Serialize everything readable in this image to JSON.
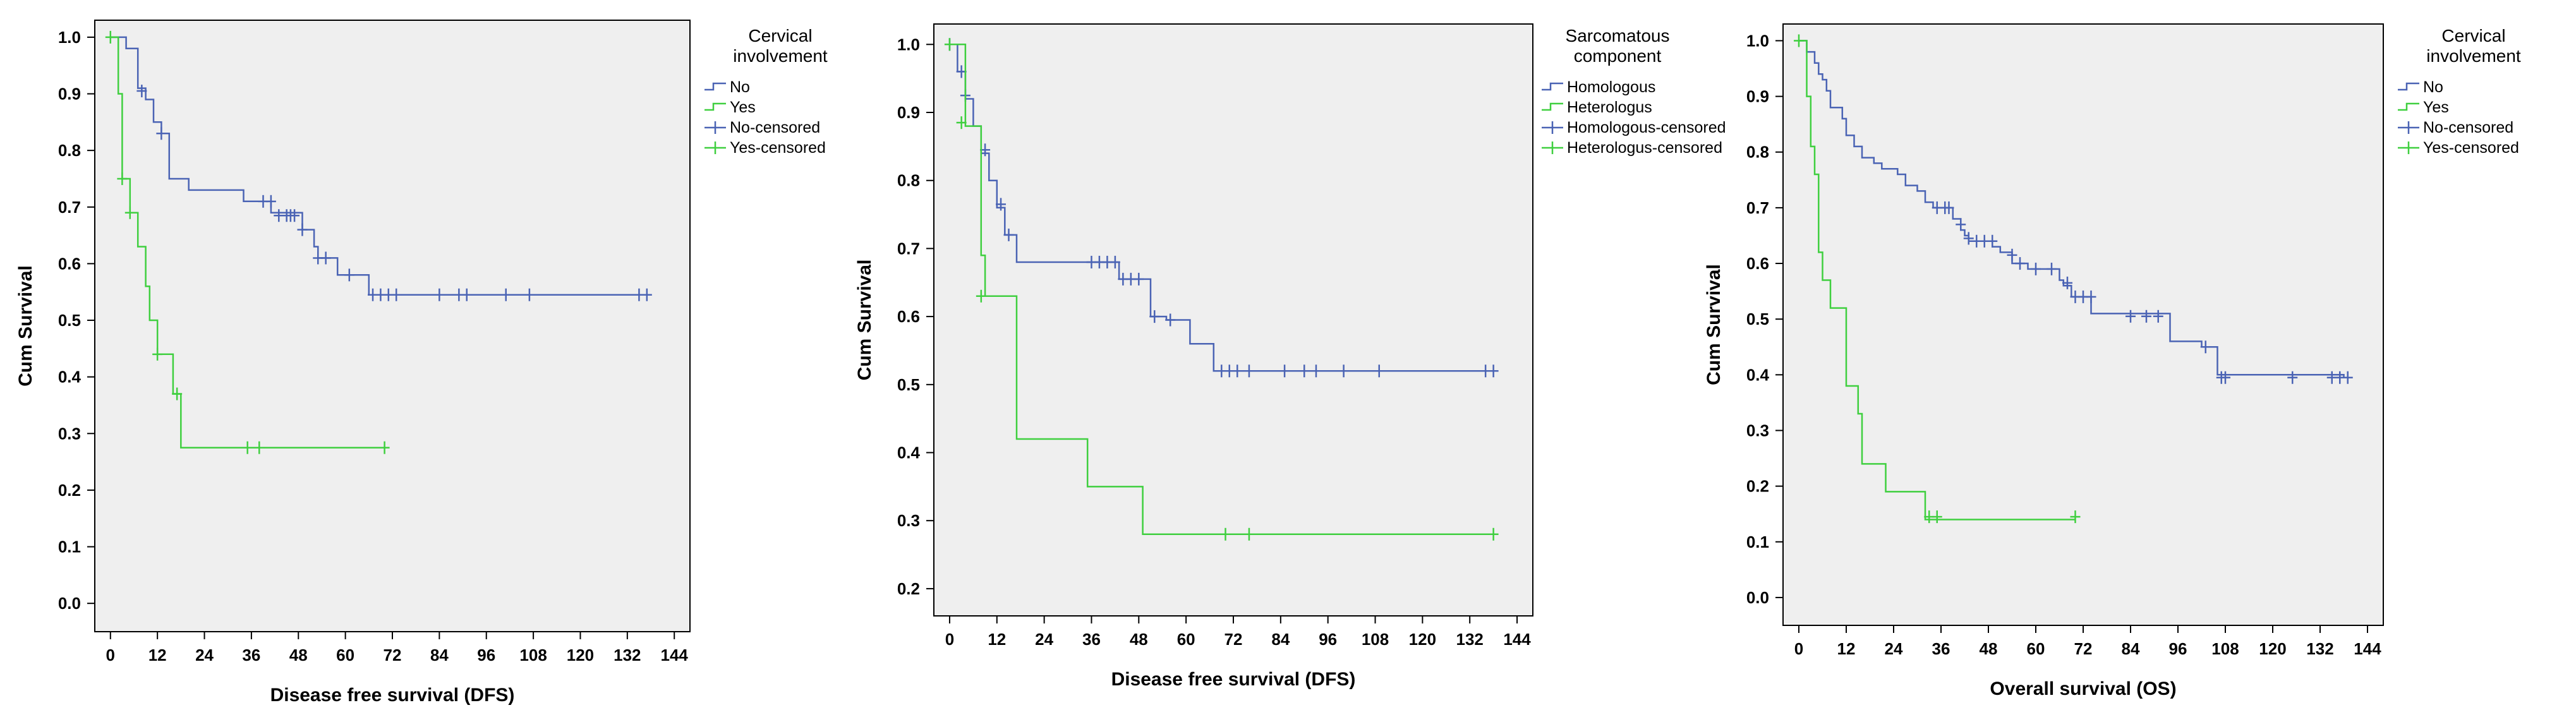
{
  "colors": {
    "blue": "#4a63b4",
    "green": "#3fcf3f",
    "plot_bg": "#efefef",
    "axis": "#000000"
  },
  "chart_data": [
    {
      "type": "line",
      "subtype": "kaplan-meier",
      "xlabel": "Disease free survival (DFS)",
      "ylabel": "Cum Survival",
      "xlim": [
        -4,
        148
      ],
      "ylim": [
        -0.05,
        1.03
      ],
      "x_ticks": [
        0,
        12,
        24,
        36,
        48,
        60,
        72,
        84,
        96,
        108,
        120,
        132,
        144
      ],
      "y_ticks": [
        0.0,
        0.1,
        0.2,
        0.3,
        0.4,
        0.5,
        0.6,
        0.7,
        0.8,
        0.9,
        1.0
      ],
      "legend": {
        "title_lines": [
          "Cervical",
          "involvement"
        ],
        "entries": [
          "No",
          "Yes",
          "No-censored",
          "Yes-censored"
        ]
      },
      "series": [
        {
          "name": "No",
          "color": "blue",
          "steps": [
            [
              0,
              1.0
            ],
            [
              4,
              0.98
            ],
            [
              7,
              0.91
            ],
            [
              9,
              0.89
            ],
            [
              11,
              0.85
            ],
            [
              13,
              0.83
            ],
            [
              15,
              0.75
            ],
            [
              20,
              0.73
            ],
            [
              34,
              0.71
            ],
            [
              41,
              0.69
            ],
            [
              49,
              0.66
            ],
            [
              52,
              0.63
            ],
            [
              53,
              0.61
            ],
            [
              58,
              0.58
            ],
            [
              64,
              0.58
            ],
            [
              66,
              0.545
            ],
            [
              137,
              0.545
            ]
          ],
          "censored": [
            [
              8,
              0.905
            ],
            [
              13,
              0.83
            ],
            [
              39,
              0.71
            ],
            [
              41,
              0.71
            ],
            [
              43,
              0.685
            ],
            [
              45,
              0.685
            ],
            [
              46,
              0.685
            ],
            [
              47,
              0.685
            ],
            [
              49,
              0.66
            ],
            [
              53,
              0.61
            ],
            [
              55,
              0.61
            ],
            [
              61,
              0.58
            ],
            [
              67,
              0.545
            ],
            [
              69,
              0.545
            ],
            [
              71,
              0.545
            ],
            [
              73,
              0.545
            ],
            [
              84,
              0.545
            ],
            [
              89,
              0.545
            ],
            [
              91,
              0.545
            ],
            [
              101,
              0.545
            ],
            [
              107,
              0.545
            ],
            [
              135,
              0.545
            ],
            [
              137,
              0.545
            ]
          ]
        },
        {
          "name": "Yes",
          "color": "green",
          "steps": [
            [
              0,
              1.0
            ],
            [
              2,
              0.9
            ],
            [
              3,
              0.75
            ],
            [
              5,
              0.69
            ],
            [
              7,
              0.63
            ],
            [
              9,
              0.56
            ],
            [
              10,
              0.5
            ],
            [
              12,
              0.44
            ],
            [
              16,
              0.37
            ],
            [
              18,
              0.275
            ],
            [
              70,
              0.275
            ]
          ],
          "censored": [
            [
              0,
              1.0
            ],
            [
              3,
              0.75
            ],
            [
              5,
              0.69
            ],
            [
              12,
              0.44
            ],
            [
              17,
              0.37
            ],
            [
              35,
              0.275
            ],
            [
              38,
              0.275
            ],
            [
              70,
              0.275
            ]
          ]
        }
      ]
    },
    {
      "type": "line",
      "subtype": "kaplan-meier",
      "xlabel": "Disease free survival (DFS)",
      "ylabel": "Cum Survival",
      "xlim": [
        -4,
        148
      ],
      "ylim": [
        0.16,
        1.03
      ],
      "x_ticks": [
        0,
        12,
        24,
        36,
        48,
        60,
        72,
        84,
        96,
        108,
        120,
        132,
        144
      ],
      "y_ticks": [
        0.2,
        0.3,
        0.4,
        0.5,
        0.6,
        0.7,
        0.8,
        0.9,
        1.0
      ],
      "legend": {
        "title_lines": [
          "Sarcomatous",
          "component"
        ],
        "entries": [
          "Homologous",
          "Heterologus",
          "Homologous-censored",
          "Heterologus-censored"
        ]
      },
      "series": [
        {
          "name": "Homologous",
          "color": "blue",
          "steps": [
            [
              0,
              1.0
            ],
            [
              2,
              0.96
            ],
            [
              4,
              0.92
            ],
            [
              6,
              0.88
            ],
            [
              8,
              0.84
            ],
            [
              10,
              0.8
            ],
            [
              12,
              0.76
            ],
            [
              14,
              0.72
            ],
            [
              17,
              0.68
            ],
            [
              43,
              0.655
            ],
            [
              51,
              0.6
            ],
            [
              55,
              0.595
            ],
            [
              61,
              0.56
            ],
            [
              67,
              0.52
            ],
            [
              138,
              0.52
            ]
          ],
          "censored": [
            [
              0,
              1.0
            ],
            [
              3,
              0.96
            ],
            [
              4,
              0.925
            ],
            [
              9,
              0.845
            ],
            [
              13,
              0.765
            ],
            [
              15,
              0.72
            ],
            [
              36,
              0.68
            ],
            [
              38,
              0.68
            ],
            [
              40,
              0.68
            ],
            [
              42,
              0.68
            ],
            [
              44,
              0.655
            ],
            [
              46,
              0.655
            ],
            [
              48,
              0.655
            ],
            [
              52,
              0.6
            ],
            [
              56,
              0.595
            ],
            [
              69,
              0.52
            ],
            [
              71,
              0.52
            ],
            [
              73,
              0.52
            ],
            [
              76,
              0.52
            ],
            [
              85,
              0.52
            ],
            [
              90,
              0.52
            ],
            [
              93,
              0.52
            ],
            [
              100,
              0.52
            ],
            [
              109,
              0.52
            ],
            [
              136,
              0.52
            ],
            [
              138,
              0.52
            ]
          ]
        },
        {
          "name": "Heterologus",
          "color": "green",
          "steps": [
            [
              0,
              1.0
            ],
            [
              4,
              0.88
            ],
            [
              8,
              0.69
            ],
            [
              9,
              0.63
            ],
            [
              17,
              0.42
            ],
            [
              35,
              0.35
            ],
            [
              49,
              0.28
            ],
            [
              138,
              0.28
            ]
          ],
          "censored": [
            [
              0,
              1.0
            ],
            [
              3,
              0.885
            ],
            [
              8,
              0.63
            ],
            [
              70,
              0.28
            ],
            [
              76,
              0.28
            ],
            [
              138,
              0.28
            ]
          ]
        }
      ]
    },
    {
      "type": "line",
      "subtype": "kaplan-meier",
      "xlabel": "Overall survival (OS)",
      "ylabel": "Cum Survival",
      "xlim": [
        -4,
        148
      ],
      "ylim": [
        -0.05,
        1.03
      ],
      "x_ticks": [
        0,
        12,
        24,
        36,
        48,
        60,
        72,
        84,
        96,
        108,
        120,
        132,
        144
      ],
      "y_ticks": [
        0.0,
        0.1,
        0.2,
        0.3,
        0.4,
        0.5,
        0.6,
        0.7,
        0.8,
        0.9,
        1.0
      ],
      "legend": {
        "title_lines": [
          "Cervical",
          "involvement"
        ],
        "entries": [
          "No",
          "Yes",
          "No-censored",
          "Yes-censored"
        ]
      },
      "series": [
        {
          "name": "No",
          "color": "blue",
          "steps": [
            [
              0,
              1.0
            ],
            [
              2,
              0.98
            ],
            [
              4,
              0.96
            ],
            [
              5,
              0.94
            ],
            [
              6,
              0.93
            ],
            [
              7,
              0.91
            ],
            [
              8,
              0.88
            ],
            [
              11,
              0.86
            ],
            [
              12,
              0.83
            ],
            [
              14,
              0.81
            ],
            [
              16,
              0.79
            ],
            [
              19,
              0.78
            ],
            [
              21,
              0.77
            ],
            [
              25,
              0.76
            ],
            [
              27,
              0.74
            ],
            [
              30,
              0.73
            ],
            [
              32,
              0.71
            ],
            [
              34,
              0.7
            ],
            [
              39,
              0.68
            ],
            [
              41,
              0.66
            ],
            [
              42,
              0.65
            ],
            [
              43,
              0.64
            ],
            [
              49,
              0.63
            ],
            [
              51,
              0.62
            ],
            [
              54,
              0.6
            ],
            [
              58,
              0.59
            ],
            [
              66,
              0.57
            ],
            [
              67,
              0.56
            ],
            [
              69,
              0.54
            ],
            [
              74,
              0.51
            ],
            [
              94,
              0.46
            ],
            [
              102,
              0.45
            ],
            [
              106,
              0.4
            ],
            [
              138,
              0.395
            ]
          ],
          "censored": [
            [
              35,
              0.7
            ],
            [
              37,
              0.7
            ],
            [
              38,
              0.7
            ],
            [
              41,
              0.67
            ],
            [
              43,
              0.645
            ],
            [
              45,
              0.64
            ],
            [
              47,
              0.64
            ],
            [
              49,
              0.64
            ],
            [
              54,
              0.615
            ],
            [
              56,
              0.6
            ],
            [
              60,
              0.59
            ],
            [
              64,
              0.59
            ],
            [
              68,
              0.565
            ],
            [
              70,
              0.54
            ],
            [
              72,
              0.54
            ],
            [
              74,
              0.54
            ],
            [
              84,
              0.505
            ],
            [
              88,
              0.505
            ],
            [
              91,
              0.505
            ],
            [
              103,
              0.45
            ],
            [
              107,
              0.395
            ],
            [
              108,
              0.395
            ],
            [
              125,
              0.395
            ],
            [
              135,
              0.395
            ],
            [
              137,
              0.395
            ],
            [
              139,
              0.395
            ]
          ]
        },
        {
          "name": "Yes",
          "color": "green",
          "steps": [
            [
              0,
              1.0
            ],
            [
              2,
              0.9
            ],
            [
              3,
              0.81
            ],
            [
              4,
              0.76
            ],
            [
              5,
              0.62
            ],
            [
              6,
              0.57
            ],
            [
              8,
              0.52
            ],
            [
              12,
              0.38
            ],
            [
              15,
              0.33
            ],
            [
              16,
              0.24
            ],
            [
              22,
              0.19
            ],
            [
              32,
              0.14
            ],
            [
              70,
              0.14
            ]
          ],
          "censored": [
            [
              0,
              1.0
            ],
            [
              33,
              0.145
            ],
            [
              35,
              0.145
            ],
            [
              70,
              0.145
            ]
          ]
        }
      ]
    }
  ]
}
